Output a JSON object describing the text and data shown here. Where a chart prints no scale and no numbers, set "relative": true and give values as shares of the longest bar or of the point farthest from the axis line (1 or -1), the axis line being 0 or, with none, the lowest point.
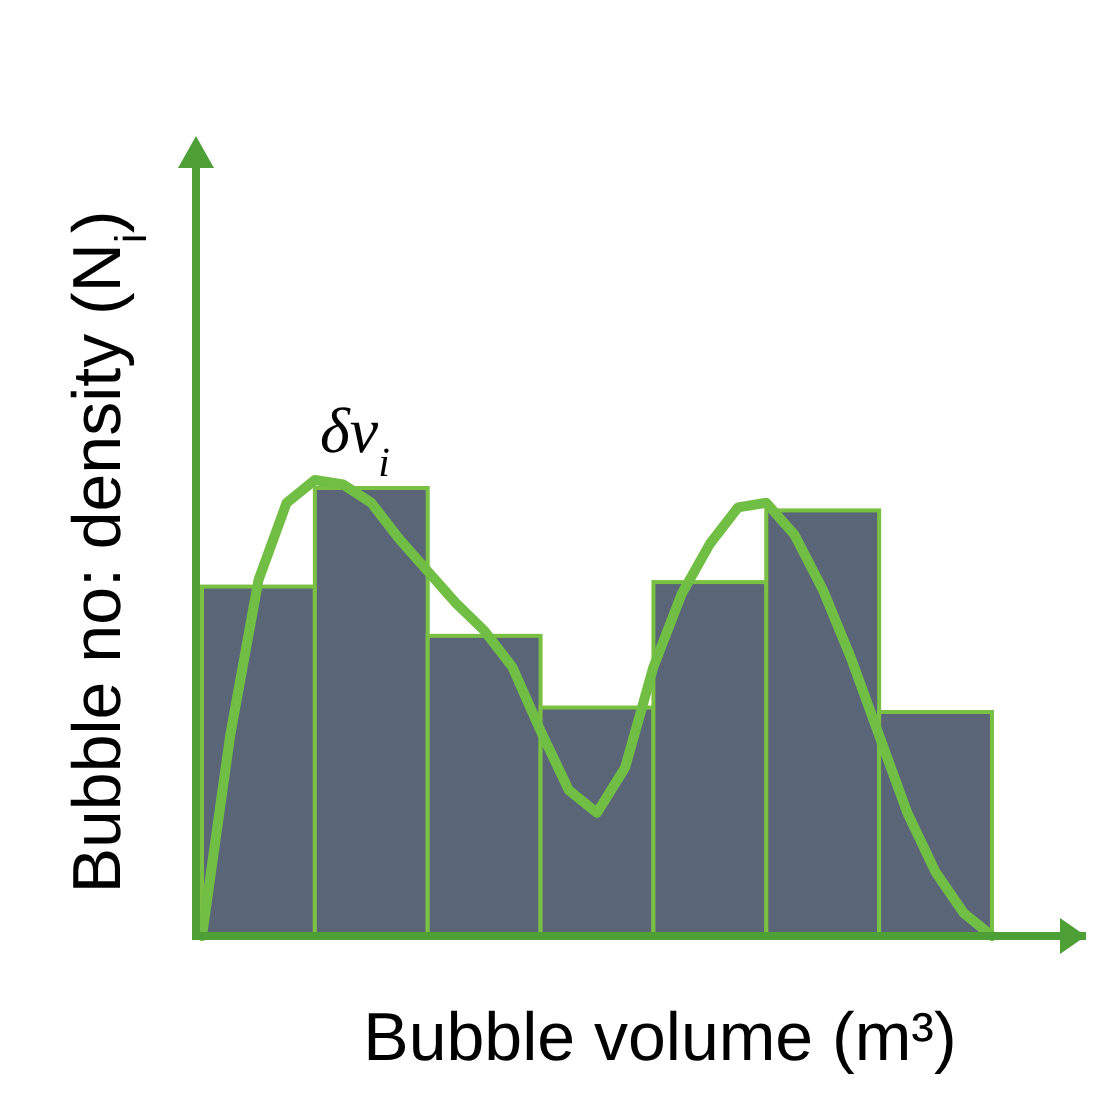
{
  "chart_data": [
    {
      "type": "bar",
      "relative": true,
      "xlabel": "Bubble volume (m³)",
      "ylabel": "Bubble no: density (N$_{i}$)",
      "annotations": [
        "δv$_{i}$"
      ],
      "categories": [
        null,
        null,
        null,
        null,
        null,
        null,
        null
      ],
      "color": "#5a6578",
      "values": [
        0.78,
        1,
        0.67,
        0.51,
        0.79,
        0.95,
        0.5
      ]
    },
    {
      "type": "line",
      "relative": true,
      "categories": [
        null,
        null,
        null,
        null,
        null,
        null,
        null,
        null,
        null,
        null,
        null,
        null,
        null,
        null,
        null,
        null,
        null,
        null,
        null,
        null,
        null,
        null,
        null,
        null,
        null,
        null,
        null,
        null,
        null
      ],
      "color": "#70bf44",
      "values": [
        0,
        0.44,
        0.78,
        0.95,
        1,
        0.99,
        0.95,
        0.87,
        0.8,
        0.73,
        0.67,
        0.59,
        0.45,
        0.32,
        0.27,
        0.37,
        0.59,
        0.75,
        0.86,
        0.94,
        0.95,
        0.88,
        0.76,
        0.61,
        0.44,
        0.27,
        0.14,
        0.05,
        0
      ]
    }
  ]
}
